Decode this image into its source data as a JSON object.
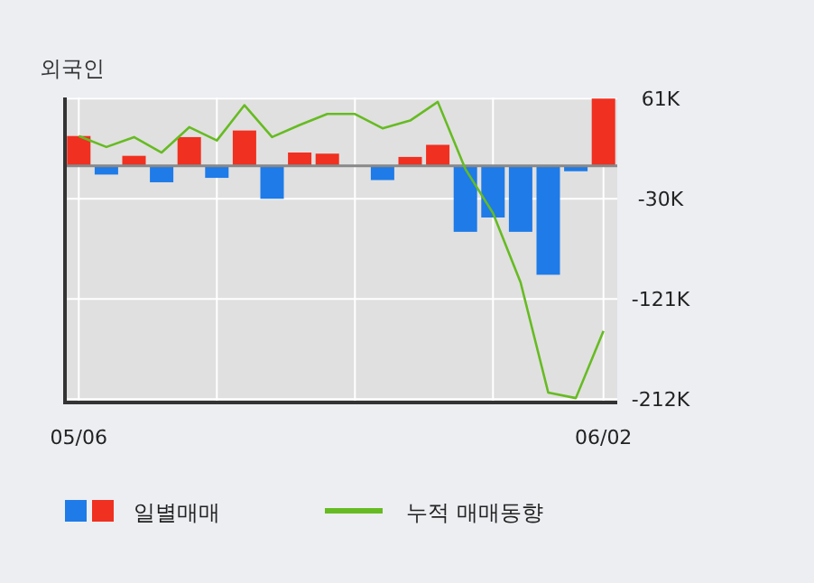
{
  "chart_data": {
    "type": "bar",
    "title": "외국인",
    "categories": [
      "05/06",
      null,
      null,
      null,
      null,
      null,
      null,
      null,
      null,
      null,
      null,
      null,
      null,
      null,
      null,
      null,
      null,
      null,
      null,
      "06/02"
    ],
    "series": [
      {
        "name": "일별매매",
        "colors": [
          "#f03020",
          "#1e7be8",
          "#f03020",
          "#1e7be8",
          "#f03020",
          "#1e7be8",
          "#f03020",
          "#1e7be8",
          "#f03020",
          "#f03020",
          "#f03020",
          "#1e7be8",
          "#f03020",
          "#f03020",
          "#1e7be8",
          "#1e7be8",
          "#1e7be8",
          "#1e7be8",
          "#1e7be8",
          "#f03020"
        ],
        "values": [
          27,
          -8,
          9,
          -15,
          26,
          -11,
          32,
          -30,
          12,
          11,
          0,
          -13,
          8,
          19,
          -60,
          -47,
          -60,
          -99,
          -5,
          61
        ]
      },
      {
        "name": "누적 매매동향",
        "type": "line",
        "color": "#66bb22",
        "values": [
          27,
          17,
          26,
          12,
          35,
          23,
          55,
          26,
          37,
          47,
          47,
          34,
          41,
          58,
          -3,
          -43,
          -106,
          -206,
          -211,
          -150
        ]
      }
    ],
    "ylim": [
      -215,
      62
    ],
    "yticks": [
      {
        "value": 61,
        "label": "61K"
      },
      {
        "value": -30,
        "label": "-30K"
      },
      {
        "value": -121,
        "label": "-121K"
      },
      {
        "value": -212,
        "label": "-212K"
      }
    ],
    "grid": true,
    "legend": "bottom"
  }
}
